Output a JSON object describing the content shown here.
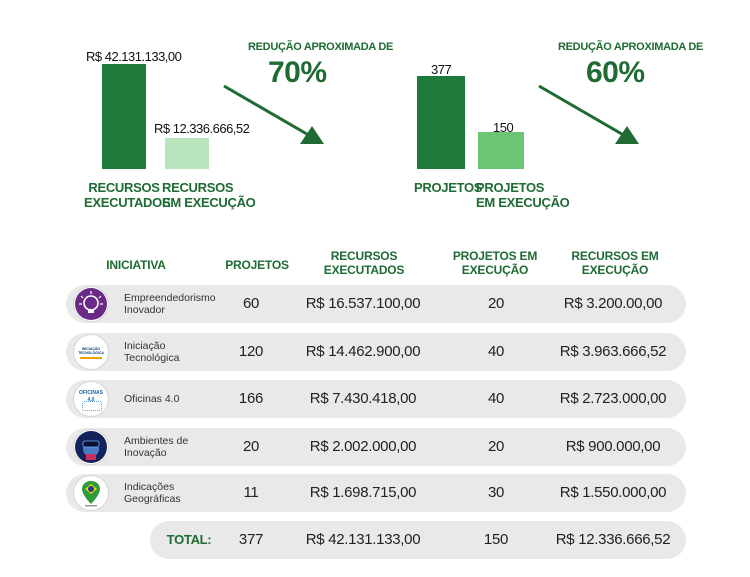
{
  "chart_data": [
    {
      "type": "bar",
      "categories": [
        "RECURSOS EXECUTADOS",
        "RECURSOS EM EXECUÇÃO"
      ],
      "values": [
        42131133.0,
        12336666.52
      ],
      "value_labels": [
        "R$ 42.131.133,00",
        "R$ 12.336.666,52"
      ],
      "colors": [
        "#1d7a3a",
        "#b9e3bd"
      ],
      "annotation_title": "REDUÇÃO APROXIMADA DE",
      "annotation_value": "70%"
    },
    {
      "type": "bar",
      "categories": [
        "PROJETOS",
        "PROJETOS EM EXECUÇÃO"
      ],
      "values": [
        377,
        150
      ],
      "value_labels": [
        "377",
        "150"
      ],
      "colors": [
        "#1d7a3a",
        "#6cc574"
      ],
      "annotation_title": "REDUÇÃO APROXIMADA DE",
      "annotation_value": "60%"
    }
  ],
  "bar_labels": {
    "c1_a1": "RECURSOS",
    "c1_a2": "EXECUTADOS",
    "c1_b1": "RECURSOS",
    "c1_b2": "EM EXECUÇÃO",
    "c2_a1": "PROJETOS",
    "c2_b1": "PROJETOS",
    "c2_b2": "EM EXECUÇÃO"
  },
  "table": {
    "headers": {
      "iniciativa": "INICIATIVA",
      "projetos": "PROJETOS",
      "rec_exec_1": "RECURSOS",
      "rec_exec_2": "EXECUTADOS",
      "proj_em_1": "PROJETOS EM",
      "proj_em_2": "EXECUÇÃO",
      "rec_em_1": "RECURSOS EM",
      "rec_em_2": "EXECUÇÃO"
    },
    "rows": [
      {
        "name_1": "Empreendedorismo",
        "name_2": "Inovador",
        "projetos": "60",
        "recursos_executados": "R$ 16.537.100,00",
        "projetos_em_execucao": "20",
        "recursos_em_execucao": "R$ 3.200.00,00",
        "icon": "lightbulb-icon",
        "icon_text": ""
      },
      {
        "name_1": "Iniciação",
        "name_2": "Tecnológica",
        "projetos": "120",
        "recursos_executados": "R$ 14.462.900,00",
        "projetos_em_execucao": "40",
        "recursos_em_execucao": "R$ 3.963.666,52",
        "icon": "iniciacao-tecnologica-logo-icon",
        "icon_text": "INICIAÇÃO TECNOLÓGICA"
      },
      {
        "name_1": "Oficinas 4.0",
        "name_2": "",
        "projetos": "166",
        "recursos_executados": "R$ 7.430.418,00",
        "projetos_em_execucao": "40",
        "recursos_em_execucao": "R$ 2.723.000,00",
        "icon": "oficinas-logo-icon",
        "icon_text": "OFICINAS 4.0"
      },
      {
        "name_1": "Ambientes de",
        "name_2": "Inovação",
        "projetos": "20",
        "recursos_executados": "R$ 2.002.000,00",
        "projetos_em_execucao": "20",
        "recursos_em_execucao": "R$ 900.000,00",
        "icon": "vr-headset-icon",
        "icon_text": ""
      },
      {
        "name_1": "Indicações",
        "name_2": "Geográficas",
        "projetos": "11",
        "recursos_executados": "R$ 1.698.715,00",
        "projetos_em_execucao": "30",
        "recursos_em_execucao": "R$ 1.550.000,00",
        "icon": "brazil-map-pin-icon",
        "icon_text": ""
      }
    ],
    "total": {
      "label": "TOTAL:",
      "projetos": "377",
      "recursos_executados": "R$ 42.131.133,00",
      "projetos_em_execucao": "150",
      "recursos_em_execucao": "R$ 12.336.666,52"
    }
  }
}
